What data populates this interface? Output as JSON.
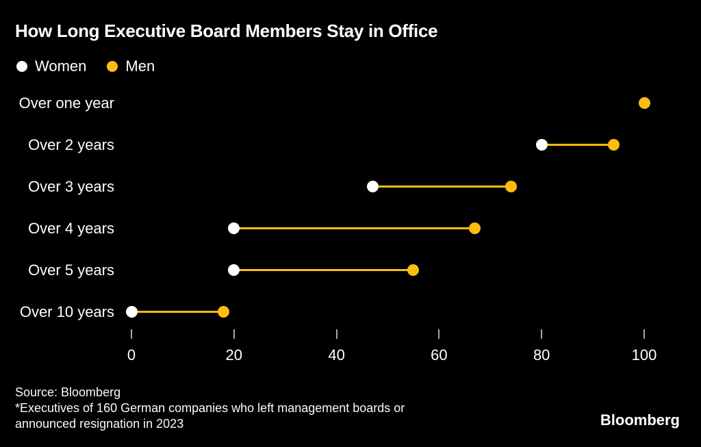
{
  "chart_data": {
    "type": "dumbbell",
    "title": "How Long Executive Board Members Stay in Office",
    "categories": [
      "Over one year",
      "Over 2 years",
      "Over 3 years",
      "Over 4 years",
      "Over 5 years",
      "Over 10 years"
    ],
    "series": [
      {
        "name": "Women",
        "color": "#ffffff",
        "values": [
          null,
          80,
          47,
          20,
          20,
          0
        ]
      },
      {
        "name": "Men",
        "color": "#fdbe10",
        "values": [
          100,
          94,
          74,
          67,
          55,
          18
        ]
      }
    ],
    "xlim": [
      0,
      100
    ],
    "x_ticks": [
      0,
      20,
      40,
      60,
      80,
      100
    ],
    "grid": false,
    "legend_position": "top-left",
    "connector_color": "#fdbe10",
    "xlabel": "",
    "ylabel": ""
  },
  "footer": {
    "source": "Source: Bloomberg",
    "note_line1": "*Executives of 160 German companies who left management boards or",
    "note_line2": "announced resignation in 2023",
    "logo": "Bloomberg"
  },
  "colors": {
    "background": "#000000",
    "text": "#ffffff",
    "tick": "#a6a6a6"
  }
}
